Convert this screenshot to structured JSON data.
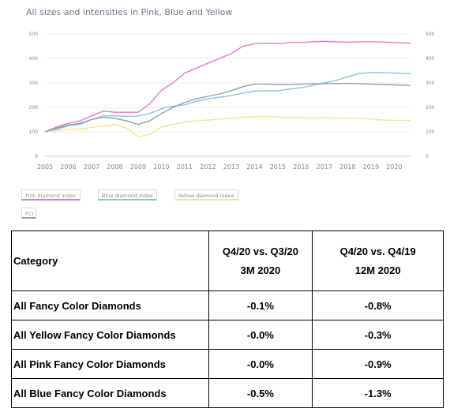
{
  "chart_data": {
    "type": "line",
    "title": "All sizes and intensities in Pink, Blue and Yellow",
    "xlabel": "",
    "ylabel": "",
    "xlim": [
      2005,
      2020.7
    ],
    "ylim": [
      0,
      500
    ],
    "x_ticks": [
      "2005",
      "2006",
      "2007",
      "2008",
      "2009",
      "2010",
      "2011",
      "2012",
      "2013",
      "2014",
      "2015",
      "2016",
      "2017",
      "2018",
      "2019",
      "2020"
    ],
    "y_ticks": [
      "0",
      "100",
      "200",
      "300",
      "400",
      "500"
    ],
    "grid": true,
    "legend": [
      "Pink diamond index",
      "Blue diamond index",
      "Yellow diamond index",
      "FCI"
    ],
    "series": [
      {
        "name": "Pink diamond index",
        "color": "#e07ad0",
        "x": [
          2005,
          2005.5,
          2006,
          2006.5,
          2007,
          2007.5,
          2008,
          2008.5,
          2009,
          2009.5,
          2010,
          2010.5,
          2011,
          2011.5,
          2012,
          2012.5,
          2013,
          2013.5,
          2014,
          2014.5,
          2015,
          2015.5,
          2016,
          2016.5,
          2017,
          2017.5,
          2018,
          2018.5,
          2019,
          2019.5,
          2020,
          2020.7
        ],
        "y": [
          100,
          120,
          135,
          145,
          165,
          185,
          180,
          180,
          180,
          215,
          270,
          300,
          340,
          360,
          380,
          400,
          420,
          450,
          460,
          462,
          460,
          465,
          465,
          468,
          470,
          468,
          466,
          468,
          468,
          467,
          465,
          462
        ]
      },
      {
        "name": "Blue diamond index",
        "color": "#8cc4dc",
        "x": [
          2005,
          2005.5,
          2006,
          2006.5,
          2007,
          2007.5,
          2008,
          2008.5,
          2009,
          2009.5,
          2010,
          2010.5,
          2011,
          2011.5,
          2012,
          2012.5,
          2013,
          2013.5,
          2014,
          2014.5,
          2015,
          2015.5,
          2016,
          2016.5,
          2017,
          2017.5,
          2018,
          2018.5,
          2019,
          2019.5,
          2020,
          2020.7
        ],
        "y": [
          100,
          110,
          125,
          130,
          150,
          165,
          165,
          163,
          165,
          175,
          195,
          205,
          210,
          225,
          235,
          242,
          248,
          258,
          266,
          268,
          268,
          275,
          280,
          290,
          300,
          310,
          325,
          338,
          342,
          342,
          340,
          338
        ]
      },
      {
        "name": "Yellow diamond index",
        "color": "#f2e592",
        "x": [
          2005,
          2005.5,
          2006,
          2006.5,
          2007,
          2007.5,
          2008,
          2008.5,
          2009,
          2009.5,
          2010,
          2010.5,
          2011,
          2011.5,
          2012,
          2012.5,
          2013,
          2013.5,
          2014,
          2014.5,
          2015,
          2015.5,
          2016,
          2016.5,
          2017,
          2017.5,
          2018,
          2018.5,
          2019,
          2019.5,
          2020,
          2020.7
        ],
        "y": [
          100,
          105,
          110,
          112,
          118,
          125,
          130,
          115,
          80,
          90,
          120,
          130,
          140,
          145,
          148,
          152,
          155,
          160,
          162,
          162,
          160,
          158,
          158,
          157,
          158,
          157,
          155,
          155,
          152,
          148,
          147,
          146
        ]
      },
      {
        "name": "FCI",
        "color": "#9a9aae",
        "x": [
          2005,
          2005.5,
          2006,
          2006.5,
          2007,
          2007.5,
          2008,
          2008.5,
          2009,
          2009.5,
          2010,
          2010.5,
          2011,
          2011.5,
          2012,
          2012.5,
          2013,
          2013.5,
          2014,
          2014.5,
          2015,
          2015.5,
          2016,
          2016.5,
          2017,
          2017.5,
          2018,
          2018.5,
          2019,
          2019.5,
          2020,
          2020.7
        ],
        "y": [
          100,
          115,
          128,
          135,
          150,
          160,
          155,
          145,
          130,
          145,
          175,
          200,
          220,
          235,
          245,
          255,
          268,
          285,
          295,
          295,
          293,
          293,
          295,
          296,
          297,
          297,
          298,
          296,
          295,
          293,
          292,
          290
        ]
      }
    ]
  },
  "table": {
    "header_category": "Category",
    "header_col1_line1": "Q4/20 vs. Q3/20",
    "header_col1_line2": "3M 2020",
    "header_col2_line1": "Q4/20 vs. Q4/19",
    "header_col2_line2": "12M 2020",
    "rows": [
      {
        "category": "All Fancy Color Diamonds",
        "q3": "-0.1%",
        "q4": "-0.8%"
      },
      {
        "category": "All Yellow Fancy Color Diamonds",
        "q3": "-0.0%",
        "q4": "-0.3%"
      },
      {
        "category": "All Pink Fancy Color Diamonds",
        "q3": "-0.0%",
        "q4": "-0.9%"
      },
      {
        "category": "All Blue Fancy Color Diamonds",
        "q3": "-0.5%",
        "q4": "-1.3%"
      }
    ]
  }
}
